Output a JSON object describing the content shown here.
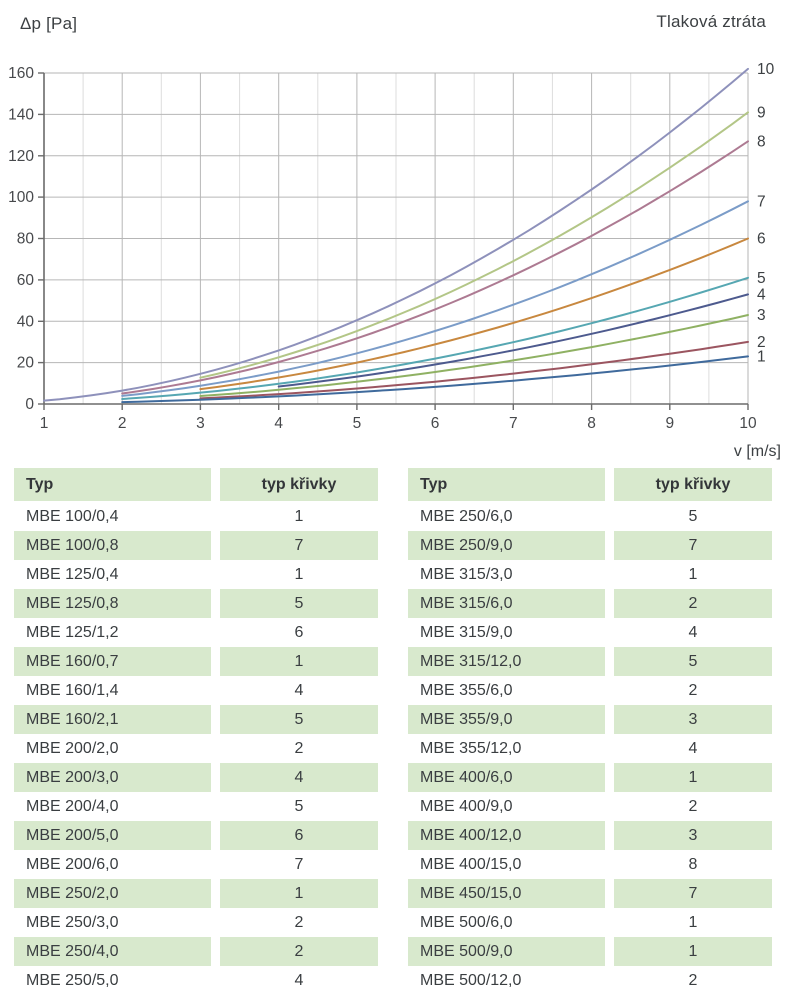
{
  "page": {
    "ylabel_top": "Δp [Pa]",
    "title": "Tlaková ztráta",
    "xlabel": "v [m/s]"
  },
  "colors": {
    "row_stripe": "#d8e9cd",
    "grid_major": "#b6b6b6",
    "grid_minor": "#dddddd",
    "axis": "#6b6b6b",
    "tick_text": "#47494c"
  },
  "chart_data": {
    "type": "line",
    "title": "Tlaková ztráta",
    "xlabel": "v [m/s]",
    "ylabel": "Δp [Pa]",
    "xlim": [
      1,
      10
    ],
    "ylim": [
      0,
      160
    ],
    "x_ticks": [
      1,
      2,
      3,
      4,
      5,
      6,
      7,
      8,
      9,
      10
    ],
    "y_ticks": [
      0,
      20,
      40,
      60,
      80,
      100,
      120,
      140,
      160
    ],
    "x_minor_step": 0.5,
    "grid": true,
    "legend_position": "curve-number-labels-at-right-edge",
    "series": [
      {
        "name": "1",
        "color": "#3f6a9c",
        "coeff": 0.23,
        "v_start": 2,
        "points": [
          [
            2,
            0.9
          ],
          [
            3,
            2.1
          ],
          [
            4,
            3.7
          ],
          [
            5,
            5.8
          ],
          [
            6,
            8.3
          ],
          [
            7,
            11.3
          ],
          [
            8,
            14.7
          ],
          [
            9,
            18.6
          ],
          [
            10,
            23
          ]
        ]
      },
      {
        "name": "2",
        "color": "#9b5560",
        "coeff": 0.3,
        "v_start": 3,
        "points": [
          [
            3,
            2.7
          ],
          [
            4,
            4.8
          ],
          [
            5,
            7.5
          ],
          [
            6,
            10.8
          ],
          [
            7,
            14.7
          ],
          [
            8,
            19.2
          ],
          [
            9,
            24.3
          ],
          [
            10,
            30
          ]
        ]
      },
      {
        "name": "3",
        "color": "#8fb163",
        "coeff": 0.43,
        "v_start": 3,
        "points": [
          [
            3,
            3.9
          ],
          [
            4,
            6.9
          ],
          [
            5,
            10.8
          ],
          [
            6,
            15.5
          ],
          [
            7,
            21.1
          ],
          [
            8,
            27.5
          ],
          [
            9,
            34.8
          ],
          [
            10,
            43
          ]
        ]
      },
      {
        "name": "4",
        "color": "#4d5a8e",
        "coeff": 0.53,
        "v_start": 4,
        "points": [
          [
            4,
            8.5
          ],
          [
            5,
            13.3
          ],
          [
            6,
            19.1
          ],
          [
            7,
            26
          ],
          [
            8,
            33.9
          ],
          [
            9,
            42.9
          ],
          [
            10,
            53
          ]
        ]
      },
      {
        "name": "5",
        "color": "#56a7b2",
        "coeff": 0.61,
        "v_start": 2,
        "points": [
          [
            2,
            2.4
          ],
          [
            3,
            5.5
          ],
          [
            4,
            9.8
          ],
          [
            5,
            15.3
          ],
          [
            6,
            22
          ],
          [
            7,
            29.9
          ],
          [
            8,
            39
          ],
          [
            9,
            49.4
          ],
          [
            10,
            61
          ]
        ]
      },
      {
        "name": "6",
        "color": "#c8883f",
        "coeff": 0.8,
        "v_start": 3,
        "points": [
          [
            3,
            7.2
          ],
          [
            4,
            12.8
          ],
          [
            5,
            20
          ],
          [
            6,
            28.8
          ],
          [
            7,
            39.2
          ],
          [
            8,
            51.2
          ],
          [
            9,
            64.8
          ],
          [
            10,
            80
          ]
        ]
      },
      {
        "name": "7",
        "color": "#7b9cc8",
        "coeff": 0.98,
        "v_start": 2,
        "points": [
          [
            2,
            3.9
          ],
          [
            3,
            8.8
          ],
          [
            4,
            15.7
          ],
          [
            5,
            24.5
          ],
          [
            6,
            35.3
          ],
          [
            7,
            48
          ],
          [
            8,
            62.7
          ],
          [
            9,
            79.4
          ],
          [
            10,
            98
          ]
        ]
      },
      {
        "name": "8",
        "color": "#ad7a92",
        "coeff": 1.27,
        "v_start": 2,
        "points": [
          [
            2,
            5.1
          ],
          [
            3,
            11.4
          ],
          [
            4,
            20.3
          ],
          [
            5,
            31.8
          ],
          [
            6,
            45.7
          ],
          [
            7,
            62.2
          ],
          [
            8,
            81.3
          ],
          [
            9,
            102.9
          ],
          [
            10,
            127
          ]
        ]
      },
      {
        "name": "9",
        "color": "#b3c687",
        "coeff": 1.41,
        "v_start": 3,
        "points": [
          [
            3,
            12.7
          ],
          [
            4,
            22.6
          ],
          [
            5,
            35.3
          ],
          [
            6,
            50.8
          ],
          [
            7,
            69.1
          ],
          [
            8,
            90.2
          ],
          [
            9,
            114.2
          ],
          [
            10,
            141
          ]
        ]
      },
      {
        "name": "10",
        "color": "#8e91bb",
        "coeff": 1.62,
        "v_start": 1,
        "points": [
          [
            1,
            1.6
          ],
          [
            2,
            6.5
          ],
          [
            3,
            14.6
          ],
          [
            4,
            25.9
          ],
          [
            5,
            40.5
          ],
          [
            6,
            58.3
          ],
          [
            7,
            79.4
          ],
          [
            8,
            103.7
          ],
          [
            9,
            131.2
          ],
          [
            10,
            162
          ]
        ]
      }
    ]
  },
  "tables": [
    {
      "headers": [
        "Typ",
        "typ křivky"
      ],
      "rows": [
        [
          "MBE 100/0,4",
          "1"
        ],
        [
          "MBE 100/0,8",
          "7"
        ],
        [
          "MBE 125/0,4",
          "1"
        ],
        [
          "MBE 125/0,8",
          "5"
        ],
        [
          "MBE 125/1,2",
          "6"
        ],
        [
          "MBE 160/0,7",
          "1"
        ],
        [
          "MBE 160/1,4",
          "4"
        ],
        [
          "MBE 160/2,1",
          "5"
        ],
        [
          "MBE 200/2,0",
          "2"
        ],
        [
          "MBE 200/3,0",
          "4"
        ],
        [
          "MBE 200/4,0",
          "5"
        ],
        [
          "MBE 200/5,0",
          "6"
        ],
        [
          "MBE 200/6,0",
          "7"
        ],
        [
          "MBE 250/2,0",
          "1"
        ],
        [
          "MBE 250/3,0",
          "2"
        ],
        [
          "MBE 250/4,0",
          "2"
        ],
        [
          "MBE 250/5,0",
          "4"
        ]
      ]
    },
    {
      "headers": [
        "Typ",
        "typ křivky"
      ],
      "rows": [
        [
          "MBE 250/6,0",
          "5"
        ],
        [
          "MBE 250/9,0",
          "7"
        ],
        [
          "MBE 315/3,0",
          "1"
        ],
        [
          "MBE 315/6,0",
          "2"
        ],
        [
          "MBE 315/9,0",
          "4"
        ],
        [
          "MBE 315/12,0",
          "5"
        ],
        [
          "MBE 355/6,0",
          "2"
        ],
        [
          "MBE 355/9,0",
          "3"
        ],
        [
          "MBE 355/12,0",
          "4"
        ],
        [
          "MBE 400/6,0",
          "1"
        ],
        [
          "MBE 400/9,0",
          "2"
        ],
        [
          "MBE 400/12,0",
          "3"
        ],
        [
          "MBE 400/15,0",
          "8"
        ],
        [
          "MBE 450/15,0",
          "7"
        ],
        [
          "MBE 500/6,0",
          "1"
        ],
        [
          "MBE 500/9,0",
          "1"
        ],
        [
          "MBE 500/12,0",
          "2"
        ]
      ]
    }
  ]
}
